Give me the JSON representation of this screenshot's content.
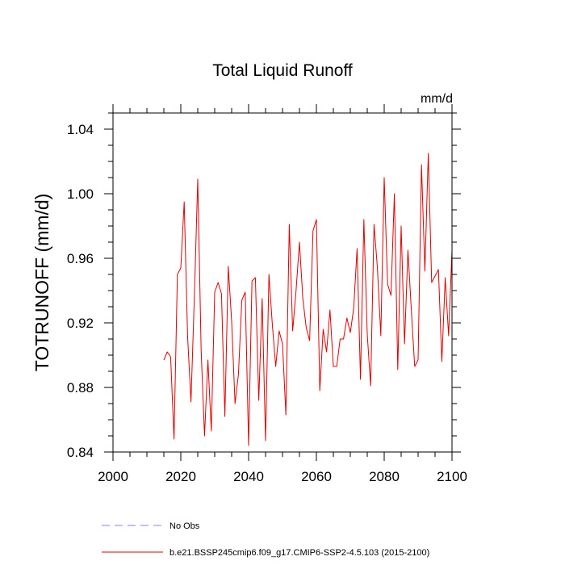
{
  "chart_data": {
    "type": "line",
    "title": "Total Liquid Runoff",
    "units": "mm/d",
    "ylabel": "TOTRUNOFF  (mm/d)",
    "xlabel": "",
    "xlim": [
      2000,
      2100
    ],
    "ylim": [
      0.84,
      1.05
    ],
    "x_ticks": [
      2000,
      2020,
      2040,
      2060,
      2080,
      2100
    ],
    "x_tick_labels": [
      "2000",
      "2020",
      "2040",
      "2060",
      "2080",
      "2100"
    ],
    "y_ticks": [
      0.84,
      0.88,
      0.92,
      0.96,
      1.0,
      1.04
    ],
    "y_tick_labels": [
      "0.84",
      "0.88",
      "0.92",
      "0.96",
      "1.00",
      "1.04"
    ],
    "grid": false,
    "legend_position": "bottom",
    "legend": [
      {
        "label": "No Obs",
        "color": "#8080ff",
        "style": "dashed"
      },
      {
        "label": "b.e21.BSSP245cmip6.f09_g17.CMIP6-SSP2-4.5.103 (2015-2100)",
        "color": "#e00000",
        "style": "solid"
      }
    ],
    "series": [
      {
        "name": "b.e21.BSSP245cmip6.f09_g17.CMIP6-SSP2-4.5.103 (2015-2100)",
        "color": "#e00000",
        "x": [
          2015,
          2016,
          2017,
          2018,
          2019,
          2020,
          2021,
          2022,
          2023,
          2024,
          2025,
          2026,
          2027,
          2028,
          2029,
          2030,
          2031,
          2032,
          2033,
          2034,
          2035,
          2036,
          2037,
          2038,
          2039,
          2040,
          2041,
          2042,
          2043,
          2044,
          2045,
          2046,
          2047,
          2048,
          2049,
          2050,
          2051,
          2052,
          2053,
          2054,
          2055,
          2056,
          2057,
          2058,
          2059,
          2060,
          2061,
          2062,
          2063,
          2064,
          2065,
          2066,
          2067,
          2068,
          2069,
          2070,
          2071,
          2072,
          2073,
          2074,
          2075,
          2076,
          2077,
          2078,
          2079,
          2080,
          2081,
          2082,
          2083,
          2084,
          2085,
          2086,
          2087,
          2088,
          2089,
          2090,
          2091,
          2092,
          2093,
          2094,
          2095,
          2096,
          2097,
          2098,
          2099,
          2100
        ],
        "values": [
          0.897,
          0.902,
          0.899,
          0.848,
          0.95,
          0.954,
          0.995,
          0.912,
          0.871,
          0.936,
          1.009,
          0.903,
          0.85,
          0.897,
          0.853,
          0.939,
          0.945,
          0.938,
          0.862,
          0.955,
          0.921,
          0.87,
          0.888,
          0.934,
          0.939,
          0.844,
          0.946,
          0.948,
          0.872,
          0.935,
          0.847,
          0.95,
          0.919,
          0.893,
          0.915,
          0.907,
          0.863,
          0.981,
          0.915,
          0.94,
          0.97,
          0.935,
          0.917,
          0.909,
          0.977,
          0.984,
          0.878,
          0.916,
          0.902,
          0.928,
          0.893,
          0.893,
          0.91,
          0.91,
          0.923,
          0.914,
          0.929,
          0.966,
          0.885,
          0.984,
          0.913,
          0.881,
          0.981,
          0.954,
          0.912,
          1.01,
          0.944,
          0.937,
          1.0,
          0.891,
          0.98,
          0.907,
          0.965,
          0.928,
          0.893,
          0.897,
          1.018,
          0.952,
          1.025,
          0.945,
          0.949,
          0.953,
          0.896,
          0.948,
          0.912,
          0.965
        ]
      }
    ]
  }
}
